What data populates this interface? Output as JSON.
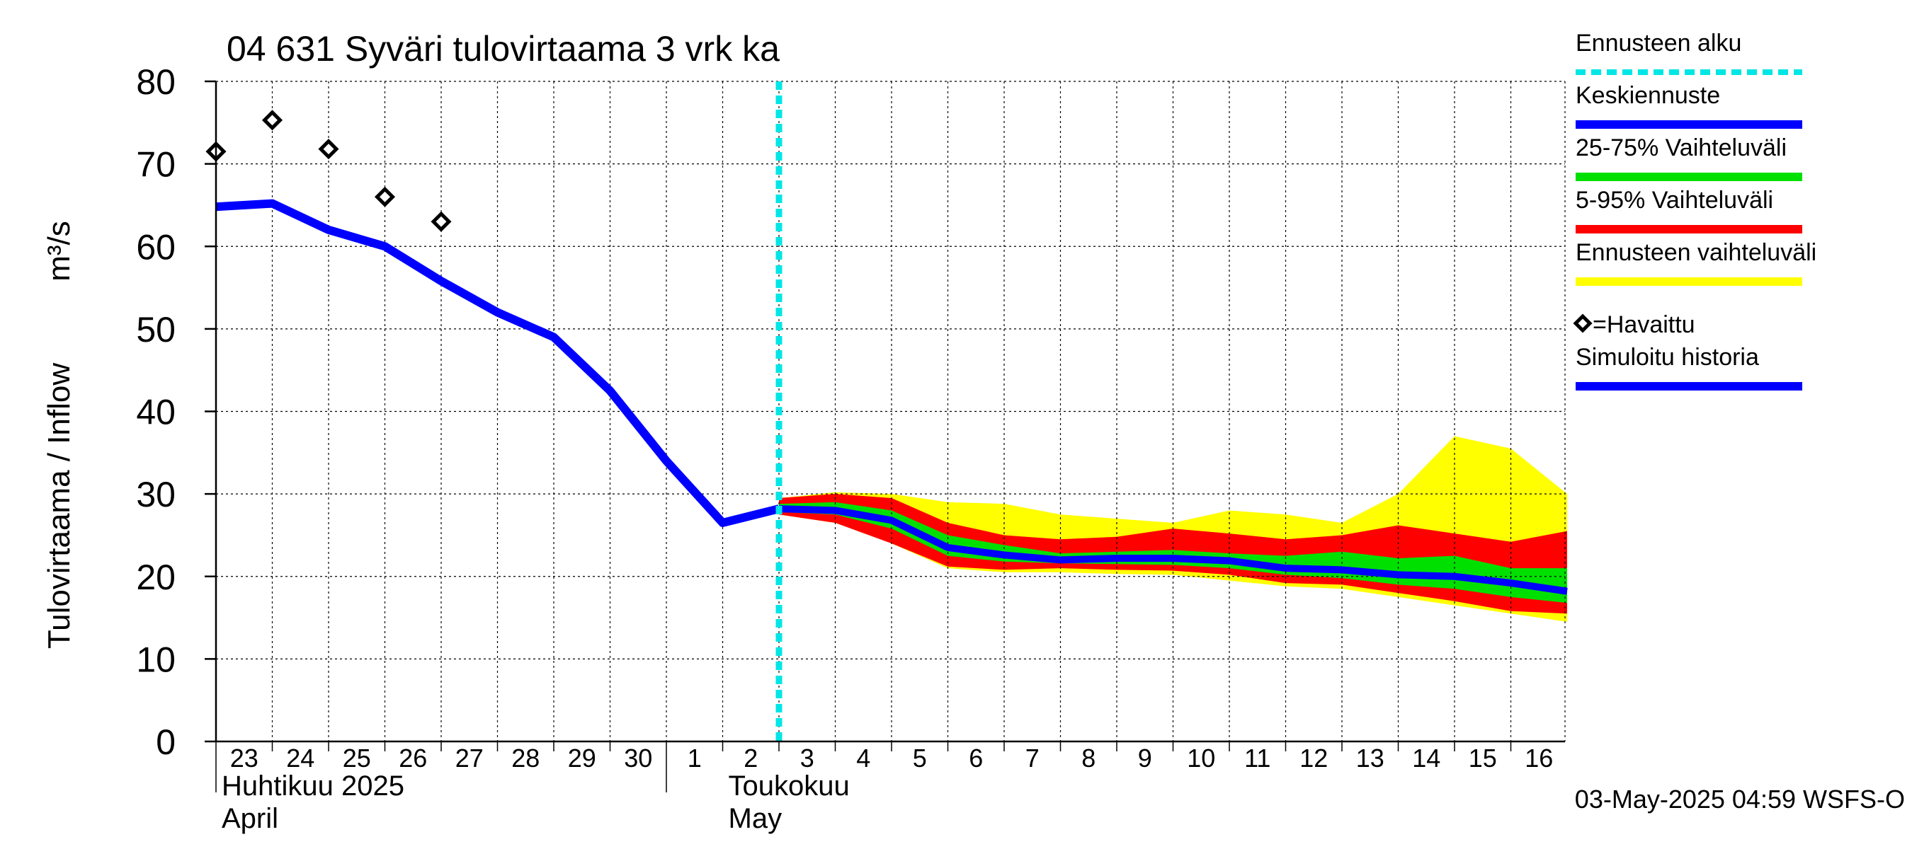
{
  "chart_data": {
    "type": "line",
    "title": "04 631 Syväri tulovirtaama 3 vrk ka",
    "ylabel": "Tulovirtaama / Inflow",
    "yunit": "m³/s",
    "ylim": [
      0,
      80
    ],
    "yticks": [
      0,
      10,
      20,
      30,
      40,
      50,
      60,
      70,
      80
    ],
    "grid": true,
    "x_days": [
      "2025-04-23",
      "2025-04-24",
      "2025-04-25",
      "2025-04-26",
      "2025-04-27",
      "2025-04-28",
      "2025-04-29",
      "2025-04-30",
      "2025-05-01",
      "2025-05-02",
      "2025-05-03",
      "2025-05-04",
      "2025-05-05",
      "2025-05-06",
      "2025-05-07",
      "2025-05-08",
      "2025-05-09",
      "2025-05-10",
      "2025-05-11",
      "2025-05-12",
      "2025-05-13",
      "2025-05-14",
      "2025-05-15",
      "2025-05-16"
    ],
    "xtick_labels": [
      "23",
      "24",
      "25",
      "26",
      "27",
      "28",
      "29",
      "30",
      "1",
      "2",
      "3",
      "4",
      "5",
      "6",
      "7",
      "8",
      "9",
      "10",
      "11",
      "12",
      "13",
      "14",
      "15",
      "16"
    ],
    "month_labels": [
      {
        "fi": "Huhtikuu  2025",
        "en": "April",
        "date": "2025-04-23"
      },
      {
        "fi": "Toukokuu",
        "en": "May",
        "date": "2025-05-02"
      }
    ],
    "forecast_start": "2025-05-03",
    "history": {
      "name": "Simuloitu historia",
      "x": [
        "2025-04-23",
        "2025-04-24",
        "2025-04-25",
        "2025-04-26",
        "2025-04-27",
        "2025-04-28",
        "2025-04-29",
        "2025-04-30",
        "2025-05-01",
        "2025-05-02",
        "2025-05-03"
      ],
      "values": [
        64.8,
        65.2,
        62.0,
        60.0,
        55.8,
        52.0,
        49.0,
        42.5,
        34.0,
        26.5,
        28.2
      ]
    },
    "observed": {
      "name": "=Havaittu",
      "x": [
        "2025-04-23",
        "2025-04-24",
        "2025-04-25",
        "2025-04-26",
        "2025-04-27"
      ],
      "values": [
        71.5,
        75.3,
        71.8,
        66.0,
        63.0
      ]
    },
    "forecast_x": [
      "2025-05-03",
      "2025-05-04",
      "2025-05-05",
      "2025-05-06",
      "2025-05-07",
      "2025-05-08",
      "2025-05-09",
      "2025-05-10",
      "2025-05-11",
      "2025-05-12",
      "2025-05-13",
      "2025-05-14",
      "2025-05-15",
      "2025-05-16",
      "2025-05-17"
    ],
    "median": {
      "name": "Keskiennuste",
      "values": [
        28.2,
        28.0,
        26.8,
        23.5,
        22.6,
        22.0,
        22.2,
        22.2,
        21.9,
        21.0,
        20.8,
        20.2,
        20.0,
        19.2,
        18.2
      ]
    },
    "band_25_75": {
      "name": "25-75% Vaihteluväli",
      "low": [
        27.8,
        27.5,
        25.8,
        22.5,
        21.8,
        21.6,
        21.5,
        21.4,
        21.0,
        20.2,
        19.8,
        19.0,
        18.5,
        17.5,
        16.8
      ],
      "high": [
        28.8,
        29.0,
        28.0,
        25.0,
        23.8,
        22.8,
        23.0,
        23.2,
        22.8,
        22.5,
        23.0,
        22.2,
        22.5,
        21.0,
        21.0
      ]
    },
    "band_5_95": {
      "name": "5-95% Vaihteluväli",
      "low": [
        27.5,
        26.5,
        24.0,
        21.2,
        20.8,
        21.0,
        20.8,
        20.7,
        20.2,
        19.2,
        19.0,
        18.0,
        17.0,
        15.8,
        15.5
      ],
      "high": [
        29.5,
        30.0,
        29.5,
        26.5,
        25.0,
        24.5,
        24.8,
        25.8,
        25.2,
        24.5,
        25.0,
        26.2,
        25.2,
        24.2,
        25.5
      ]
    },
    "band_full": {
      "name": "Ennusteen vaihteluväli",
      "low": [
        27.5,
        26.5,
        24.0,
        21.0,
        20.5,
        20.5,
        20.3,
        20.2,
        19.5,
        18.8,
        18.5,
        17.5,
        16.5,
        15.5,
        14.5
      ],
      "high": [
        29.5,
        30.2,
        30.0,
        29.0,
        28.8,
        27.5,
        27.0,
        26.5,
        28.0,
        27.5,
        26.5,
        30.0,
        37.0,
        35.5,
        30.0
      ]
    },
    "colors": {
      "history": "#0000ff",
      "median": "#0000ff",
      "band_25_75": "#00e000",
      "band_5_95": "#ff0000",
      "band_full": "#ffff00",
      "forecast_start": "#00e5e5",
      "observed": "#000000",
      "grid": "#000000"
    },
    "legend": {
      "position": "right",
      "items": [
        {
          "key": "forecast_start",
          "label": "Ennusteen alku"
        },
        {
          "key": "median",
          "label": "Keskiennuste"
        },
        {
          "key": "band_25_75",
          "label": "25-75% Vaihteluväli"
        },
        {
          "key": "band_5_95",
          "label": "5-95% Vaihteluväli"
        },
        {
          "key": "band_full",
          "label": "Ennusteen vaihteluväli"
        },
        {
          "key": "observed",
          "label": "=Havaittu"
        },
        {
          "key": "history",
          "label": "Simuloitu historia"
        }
      ]
    },
    "footer": "03-May-2025 04:59 WSFS-O"
  }
}
